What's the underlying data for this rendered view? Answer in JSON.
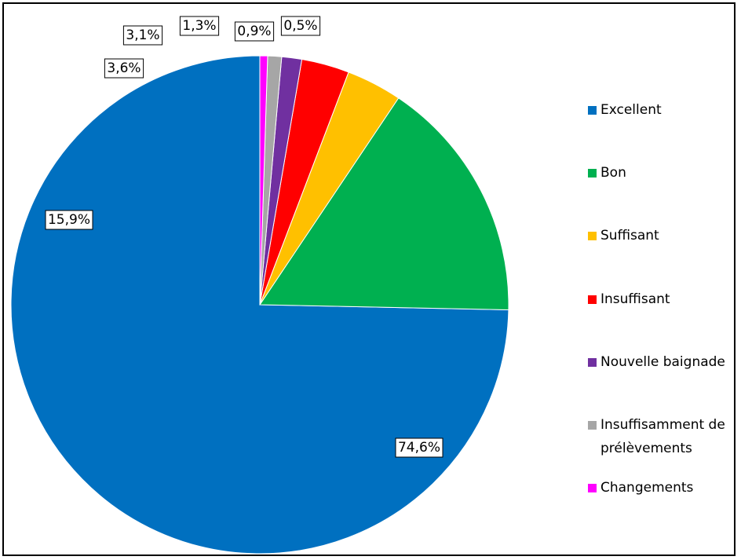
{
  "chart_data": {
    "type": "pie",
    "title": "",
    "legend_position": "right",
    "slices": [
      {
        "label": "Excellent",
        "value": 74.6,
        "display": "74,6%",
        "color": "#0070C0"
      },
      {
        "label": "Bon",
        "value": 15.9,
        "display": "15,9%",
        "color": "#00B050"
      },
      {
        "label": "Suffisant",
        "value": 3.6,
        "display": "3,6%",
        "color": "#FFC000"
      },
      {
        "label": "Insuffisant",
        "value": 3.1,
        "display": "3,1%",
        "color": "#FF0000"
      },
      {
        "label": "Nouvelle baignade",
        "value": 1.3,
        "display": "1,3%",
        "color": "#7030A0"
      },
      {
        "label": "Insuffisamment de prélèvements",
        "value": 0.9,
        "display": "0,9%",
        "color": "#A6A6A6"
      },
      {
        "label": "Changements",
        "value": 0.5,
        "display": "0,5%",
        "color": "#FF00FF"
      }
    ]
  }
}
